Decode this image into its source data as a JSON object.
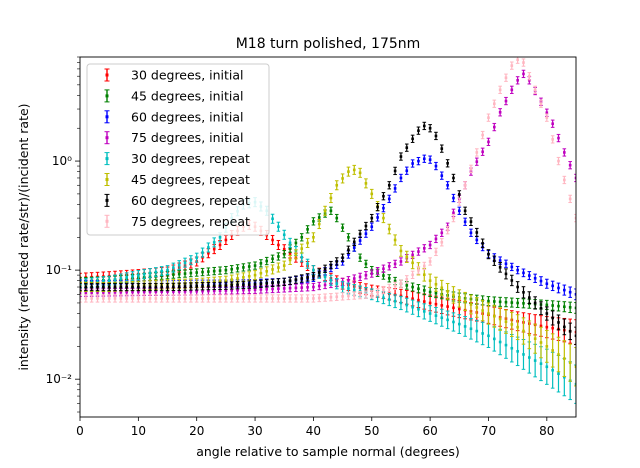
{
  "chart_data": {
    "type": "scatter",
    "title": "M18 turn polished, 175nm",
    "xlabel": "angle relative to sample normal (degrees)",
    "ylabel": "intensity (reflected rate/str)/(incident rate)",
    "xlim": [
      0,
      85
    ],
    "ylim": [
      0.0045,
      9
    ],
    "yscale": "log",
    "x_ticks": [
      0,
      10,
      20,
      30,
      40,
      50,
      60,
      70,
      80
    ],
    "x_tick_labels": [
      "0",
      "10",
      "20",
      "30",
      "40",
      "50",
      "60",
      "70",
      "80"
    ],
    "y_ticks": [
      0.01,
      0.1,
      1
    ],
    "y_tick_labels": [
      "10⁻²",
      "10⁻¹",
      "10⁰"
    ],
    "grid": false,
    "legend_position": "top-left",
    "series": [
      {
        "name": "30 degrees, initial",
        "color": "#ff0000",
        "x": [
          0,
          5,
          10,
          15,
          20,
          24,
          26,
          28,
          29,
          30,
          32,
          34,
          37,
          40,
          45,
          50,
          55,
          60,
          65,
          70,
          75,
          80,
          85
        ],
        "y": [
          0.085,
          0.088,
          0.092,
          0.097,
          0.12,
          0.17,
          0.21,
          0.25,
          0.26,
          0.25,
          0.21,
          0.17,
          0.13,
          0.1,
          0.075,
          0.065,
          0.058,
          0.05,
          0.044,
          0.039,
          0.034,
          0.03,
          0.027
        ],
        "err": [
          0.1,
          0.1,
          0.1,
          0.1,
          0.1,
          0.1,
          0.1,
          0.1,
          0.1,
          0.1,
          0.1,
          0.1,
          0.1,
          0.1,
          0.12,
          0.12,
          0.15,
          0.18,
          0.2,
          0.2,
          0.22,
          0.25,
          0.3
        ]
      },
      {
        "name": "45 degrees, initial",
        "color": "#008000",
        "x": [
          0,
          5,
          10,
          15,
          20,
          25,
          30,
          35,
          38,
          40,
          42,
          43,
          44,
          46,
          48,
          50,
          55,
          60,
          65,
          70,
          75,
          80,
          85
        ],
        "y": [
          0.079,
          0.081,
          0.085,
          0.09,
          0.095,
          0.1,
          0.11,
          0.14,
          0.2,
          0.28,
          0.33,
          0.35,
          0.3,
          0.2,
          0.13,
          0.1,
          0.075,
          0.063,
          0.056,
          0.052,
          0.05,
          0.048,
          0.045
        ],
        "err": [
          0.08,
          0.08,
          0.08,
          0.08,
          0.08,
          0.08,
          0.08,
          0.08,
          0.08,
          0.08,
          0.08,
          0.08,
          0.08,
          0.08,
          0.08,
          0.08,
          0.08,
          0.1,
          0.1,
          0.1,
          0.1,
          0.1,
          0.12
        ]
      },
      {
        "name": "60 degrees, initial",
        "color": "#0000ff",
        "x": [
          0,
          5,
          10,
          15,
          20,
          25,
          30,
          35,
          40,
          45,
          50,
          53,
          55,
          57,
          59,
          60,
          61,
          63,
          65,
          67,
          70,
          75,
          80,
          85
        ],
        "y": [
          0.075,
          0.074,
          0.074,
          0.074,
          0.075,
          0.075,
          0.076,
          0.078,
          0.085,
          0.12,
          0.25,
          0.45,
          0.7,
          0.95,
          1.05,
          1.03,
          0.9,
          0.6,
          0.35,
          0.22,
          0.14,
          0.1,
          0.075,
          0.06
        ],
        "err": [
          0.08,
          0.08,
          0.08,
          0.08,
          0.08,
          0.08,
          0.08,
          0.08,
          0.08,
          0.08,
          0.08,
          0.08,
          0.08,
          0.08,
          0.08,
          0.08,
          0.08,
          0.08,
          0.08,
          0.08,
          0.08,
          0.08,
          0.1,
          0.12
        ]
      },
      {
        "name": "75 degrees, initial",
        "color": "#bf00bf",
        "x": [
          0,
          10,
          20,
          30,
          40,
          45,
          50,
          55,
          60,
          63,
          65,
          67,
          70,
          72,
          74,
          75,
          76,
          77,
          79,
          81,
          83,
          85
        ],
        "y": [
          0.062,
          0.063,
          0.064,
          0.066,
          0.07,
          0.078,
          0.093,
          0.12,
          0.17,
          0.25,
          0.45,
          0.8,
          1.5,
          2.8,
          4.5,
          5.5,
          6.3,
          5.5,
          3.5,
          2.2,
          1.2,
          0.7
        ],
        "err": [
          0.08,
          0.08,
          0.08,
          0.08,
          0.08,
          0.08,
          0.08,
          0.08,
          0.08,
          0.08,
          0.08,
          0.08,
          0.08,
          0.08,
          0.08,
          0.08,
          0.08,
          0.08,
          0.08,
          0.08,
          0.08,
          0.08
        ]
      },
      {
        "name": "30 degrees, repeat",
        "color": "#00bfbf",
        "x": [
          0,
          5,
          10,
          15,
          20,
          24,
          26,
          28,
          30,
          32,
          34,
          37,
          40,
          45,
          50,
          55,
          60,
          65,
          70,
          75,
          80,
          85
        ],
        "y": [
          0.075,
          0.08,
          0.09,
          0.1,
          0.13,
          0.2,
          0.3,
          0.4,
          0.42,
          0.35,
          0.25,
          0.15,
          0.1,
          0.07,
          0.06,
          0.05,
          0.04,
          0.032,
          0.025,
          0.018,
          0.013,
          0.009
        ],
        "err": [
          0.1,
          0.1,
          0.1,
          0.1,
          0.1,
          0.1,
          0.1,
          0.1,
          0.1,
          0.1,
          0.1,
          0.1,
          0.1,
          0.12,
          0.12,
          0.15,
          0.18,
          0.22,
          0.28,
          0.35,
          0.45,
          0.5
        ]
      },
      {
        "name": "45 degrees, repeat",
        "color": "#bfbf00",
        "x": [
          0,
          5,
          10,
          15,
          20,
          25,
          30,
          35,
          40,
          42,
          44,
          46,
          47,
          48,
          50,
          52,
          55,
          60,
          65,
          70,
          75,
          80,
          85
        ],
        "y": [
          0.07,
          0.07,
          0.072,
          0.074,
          0.076,
          0.08,
          0.09,
          0.11,
          0.2,
          0.35,
          0.6,
          0.8,
          0.83,
          0.78,
          0.5,
          0.3,
          0.15,
          0.08,
          0.055,
          0.04,
          0.03,
          0.02,
          0.013
        ],
        "err": [
          0.1,
          0.1,
          0.1,
          0.1,
          0.1,
          0.1,
          0.1,
          0.1,
          0.1,
          0.1,
          0.1,
          0.1,
          0.1,
          0.1,
          0.1,
          0.1,
          0.12,
          0.15,
          0.2,
          0.25,
          0.3,
          0.4,
          0.5
        ]
      },
      {
        "name": "60 degrees, repeat",
        "color": "#000000",
        "x": [
          0,
          5,
          10,
          15,
          20,
          25,
          30,
          35,
          40,
          45,
          50,
          53,
          55,
          57,
          58,
          59,
          60,
          61,
          62,
          64,
          66,
          70,
          75,
          80,
          85
        ],
        "y": [
          0.07,
          0.07,
          0.07,
          0.07,
          0.071,
          0.072,
          0.074,
          0.078,
          0.088,
          0.13,
          0.3,
          0.6,
          1.1,
          1.6,
          1.9,
          2.1,
          2.0,
          1.7,
          1.3,
          0.7,
          0.35,
          0.14,
          0.07,
          0.04,
          0.025
        ],
        "err": [
          0.08,
          0.08,
          0.08,
          0.08,
          0.08,
          0.08,
          0.08,
          0.08,
          0.08,
          0.08,
          0.08,
          0.08,
          0.08,
          0.08,
          0.08,
          0.08,
          0.08,
          0.08,
          0.08,
          0.08,
          0.08,
          0.1,
          0.12,
          0.15,
          0.2
        ]
      },
      {
        "name": "75 degrees, repeat",
        "color": "#ffb6c1",
        "x": [
          0,
          10,
          20,
          30,
          40,
          50,
          55,
          60,
          62,
          64,
          66,
          68,
          70,
          72,
          74,
          75,
          76,
          77,
          78,
          80,
          82,
          84,
          85
        ],
        "y": [
          0.055,
          0.055,
          0.055,
          0.055,
          0.055,
          0.06,
          0.075,
          0.12,
          0.18,
          0.3,
          0.6,
          1.2,
          2.5,
          4.5,
          7.5,
          8.5,
          8.0,
          6.0,
          4.5,
          2.5,
          1.0,
          0.45,
          0.3
        ],
        "err": [
          0.08,
          0.08,
          0.08,
          0.08,
          0.08,
          0.08,
          0.08,
          0.08,
          0.08,
          0.08,
          0.08,
          0.08,
          0.08,
          0.08,
          0.08,
          0.08,
          0.08,
          0.08,
          0.08,
          0.08,
          0.08,
          0.08,
          0.08
        ]
      }
    ]
  }
}
